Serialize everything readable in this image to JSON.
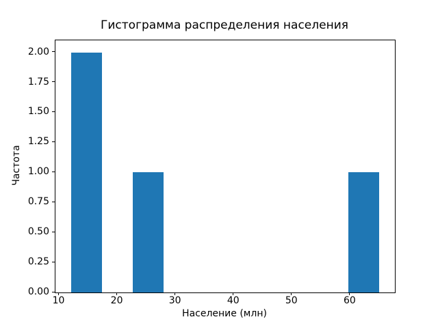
{
  "chart_data": {
    "type": "bar",
    "subtype": "histogram",
    "title": "Гистограмма распределения населения",
    "xlabel": "Население (млн)",
    "ylabel": "Частота",
    "bar_color": "#1f77b4",
    "axis_color": "#000000",
    "background_color": "#ffffff",
    "grid": false,
    "xlim": [
      9.35,
      67.65
    ],
    "ylim": [
      0,
      2.1
    ],
    "x_ticks": [
      {
        "value": 10,
        "label": "10"
      },
      {
        "value": 20,
        "label": "20"
      },
      {
        "value": 30,
        "label": "30"
      },
      {
        "value": 40,
        "label": "40"
      },
      {
        "value": 50,
        "label": "50"
      },
      {
        "value": 60,
        "label": "60"
      }
    ],
    "y_ticks": [
      {
        "value": 0.0,
        "label": "0.00"
      },
      {
        "value": 0.25,
        "label": "0.25"
      },
      {
        "value": 0.5,
        "label": "0.50"
      },
      {
        "value": 0.75,
        "label": "0.75"
      },
      {
        "value": 1.0,
        "label": "1.00"
      },
      {
        "value": 1.25,
        "label": "1.25"
      },
      {
        "value": 1.5,
        "label": "1.50"
      },
      {
        "value": 1.75,
        "label": "1.75"
      },
      {
        "value": 2.0,
        "label": "2.00"
      }
    ],
    "bins": [
      {
        "x0": 12.0,
        "x1": 17.3,
        "frequency": 2
      },
      {
        "x0": 22.6,
        "x1": 27.9,
        "frequency": 1
      },
      {
        "x0": 59.7,
        "x1": 65.0,
        "frequency": 1
      }
    ]
  }
}
